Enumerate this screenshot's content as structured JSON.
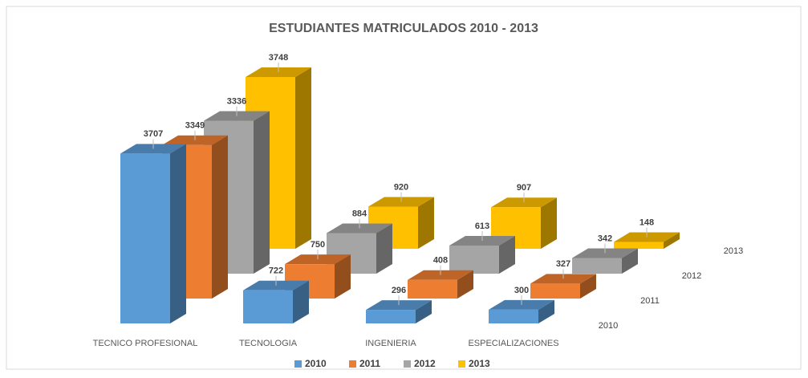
{
  "chart_data": {
    "type": "bar3d",
    "title": "ESTUDIANTES MATRICULADOS 2010 - 2013",
    "categories": [
      "TECNICO PROFESIONAL",
      "TECNOLOGIA",
      "INGENIERIA",
      "ESPECIALIZACIONES"
    ],
    "series": [
      {
        "name": "2010",
        "color": "#5b9bd5",
        "values": [
          3707,
          722,
          296,
          300
        ]
      },
      {
        "name": "2011",
        "color": "#ed7d31",
        "values": [
          3349,
          750,
          408,
          327
        ]
      },
      {
        "name": "2012",
        "color": "#a5a5a5",
        "values": [
          3336,
          884,
          613,
          342
        ]
      },
      {
        "name": "2013",
        "color": "#ffc000",
        "values": [
          3748,
          920,
          907,
          148
        ]
      }
    ],
    "legend": "bottom"
  }
}
